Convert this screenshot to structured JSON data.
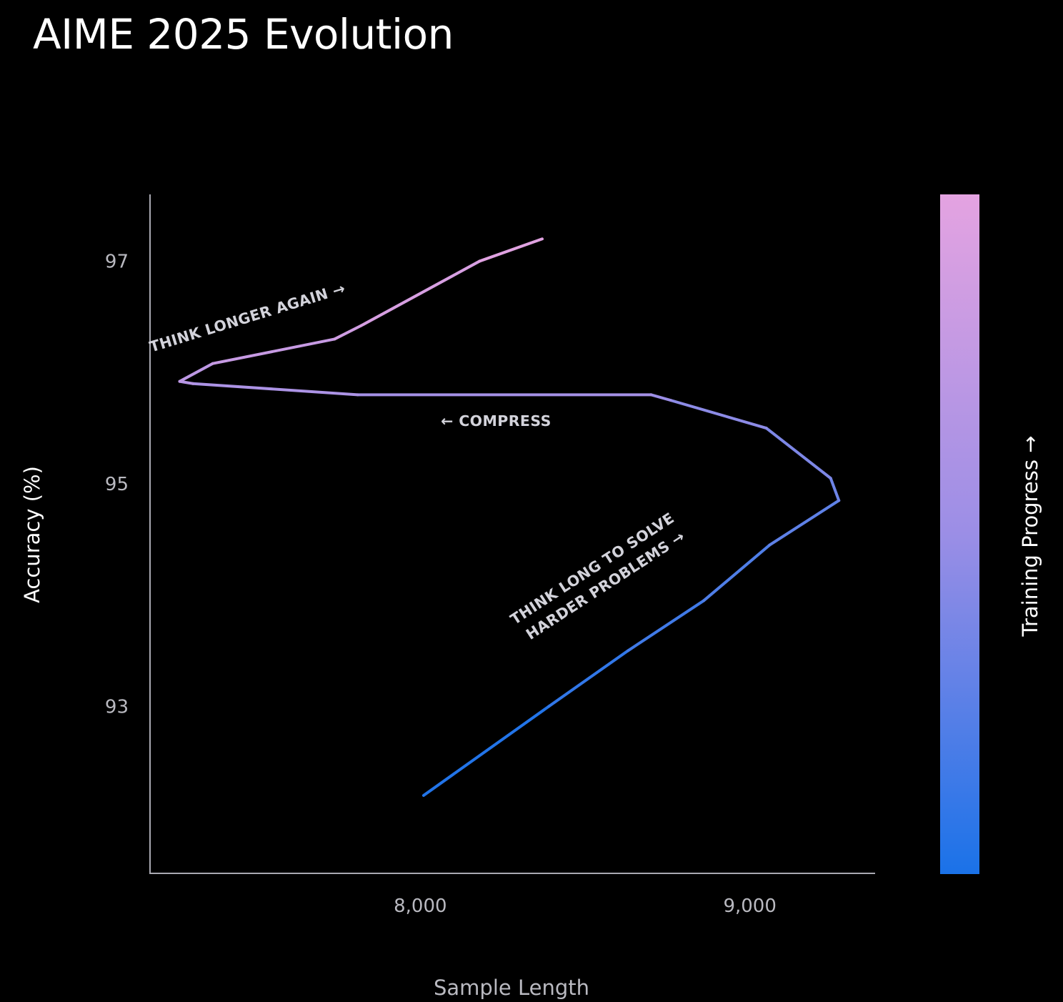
{
  "chart_data": {
    "type": "line",
    "title": "AIME 2025 Evolution",
    "xlabel": "Sample Length",
    "ylabel": "Accuracy (%)",
    "colorbar_label": "Training Progress →",
    "xlim": [
      7180,
      9380
    ],
    "ylim": [
      91.5,
      97.6
    ],
    "xticks": [
      8000,
      9000
    ],
    "xtick_labels": [
      "8,000",
      "9,000"
    ],
    "yticks": [
      93,
      95,
      97
    ],
    "ytick_labels": [
      "93",
      "95",
      "97"
    ],
    "grid": false,
    "color_start": "#1a72e8",
    "color_end": "#e4a3e1",
    "series": [
      {
        "x": [
          8010,
          8390,
          8630,
          8860,
          9060,
          9270,
          9245,
          9050,
          8760,
          8700,
          7810,
          7310,
          7270,
          7370,
          7740,
          7820,
          8180,
          8370
        ],
        "y": [
          92.2,
          93.0,
          93.5,
          93.95,
          94.45,
          94.85,
          95.05,
          95.5,
          95.75,
          95.8,
          95.8,
          95.9,
          95.92,
          96.08,
          96.3,
          96.42,
          97.0,
          97.2
        ]
      }
    ],
    "annotations": [
      {
        "text": "THINK LONGER AGAIN →",
        "x": 7480,
        "y": 96.45
      },
      {
        "text": "← COMPRESS",
        "x": 8230,
        "y": 95.52
      },
      {
        "text": "THINK LONG TO SOLVE",
        "x": 8530,
        "y": 94.2
      },
      {
        "text": "HARDER PROBLEMS →",
        "x": 8570,
        "y": 94.05
      }
    ]
  }
}
